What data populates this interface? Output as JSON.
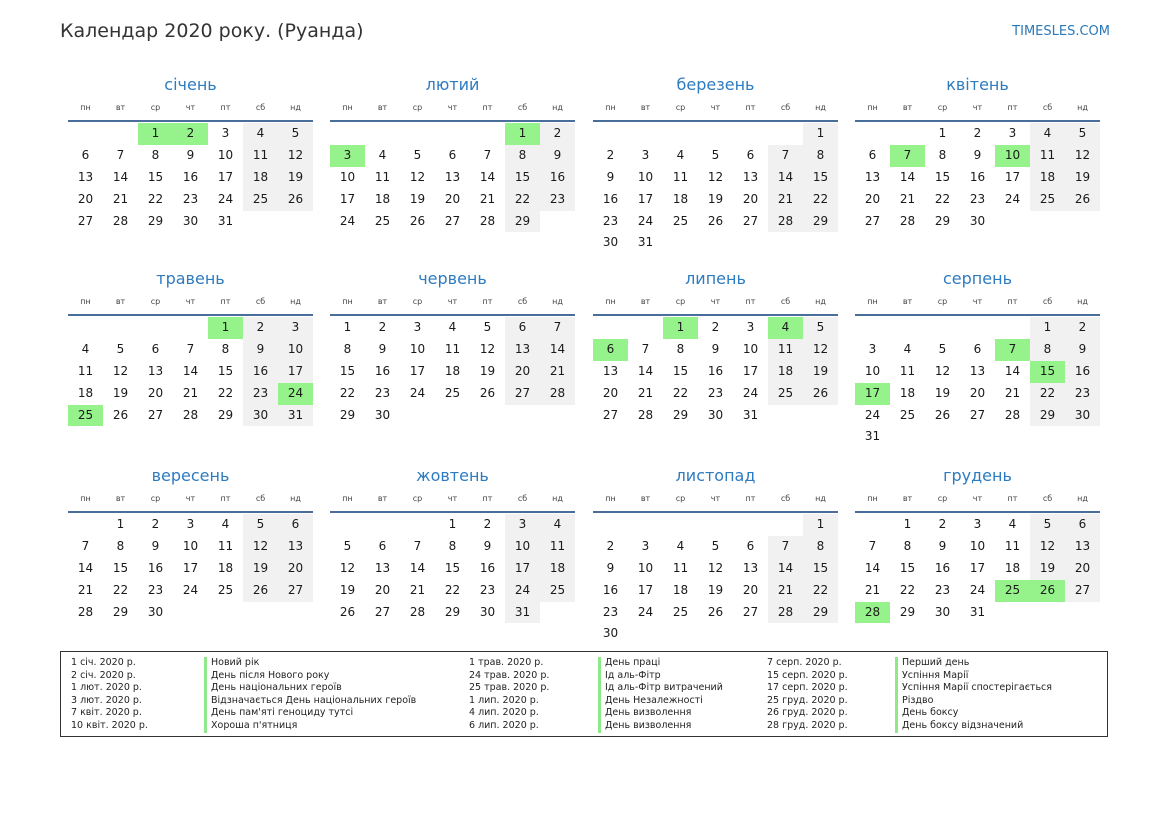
{
  "header": {
    "title": "Календар 2020 року. (Руанда)",
    "site": "TIMESLES.COM"
  },
  "weekdays": [
    "пн",
    "вт",
    "ср",
    "чт",
    "пт",
    "сб",
    "нд"
  ],
  "months": [
    {
      "name": "січень",
      "start": 2,
      "days": 31,
      "holidays": [
        1,
        2
      ]
    },
    {
      "name": "лютий",
      "start": 5,
      "days": 29,
      "holidays": [
        1,
        3
      ]
    },
    {
      "name": "березень",
      "start": 6,
      "days": 31,
      "holidays": []
    },
    {
      "name": "квітень",
      "start": 2,
      "days": 30,
      "holidays": [
        7,
        10
      ]
    },
    {
      "name": "травень",
      "start": 4,
      "days": 31,
      "holidays": [
        1,
        24,
        25
      ]
    },
    {
      "name": "червень",
      "start": 0,
      "days": 30,
      "holidays": []
    },
    {
      "name": "липень",
      "start": 2,
      "days": 31,
      "holidays": [
        1,
        4,
        6
      ]
    },
    {
      "name": "серпень",
      "start": 5,
      "days": 31,
      "holidays": [
        7,
        15,
        17
      ]
    },
    {
      "name": "вересень",
      "start": 1,
      "days": 30,
      "holidays": []
    },
    {
      "name": "жовтень",
      "start": 3,
      "days": 31,
      "holidays": []
    },
    {
      "name": "листопад",
      "start": 6,
      "days": 30,
      "holidays": []
    },
    {
      "name": "грудень",
      "start": 1,
      "days": 31,
      "holidays": [
        25,
        26,
        28
      ]
    }
  ],
  "holidays_list": [
    [
      {
        "date": "1 січ. 2020 р.",
        "name": "Новий рік"
      },
      {
        "date": "2 січ. 2020 р.",
        "name": "День після Нового року"
      },
      {
        "date": "1 лют. 2020 р.",
        "name": "День національних героїв"
      },
      {
        "date": "3 лют. 2020 р.",
        "name": "Відзначається День національних героїв"
      },
      {
        "date": "7 квіт. 2020 р.",
        "name": "День пам'яті геноциду тутсі"
      },
      {
        "date": "10 квіт. 2020 р.",
        "name": "Хороша п'ятниця"
      }
    ],
    [
      {
        "date": "1 трав. 2020 р.",
        "name": "День праці"
      },
      {
        "date": "24 трав. 2020 р.",
        "name": "Ід аль-Фітр"
      },
      {
        "date": "25 трав. 2020 р.",
        "name": "Ід аль-Фітр витрачений"
      },
      {
        "date": "1 лип. 2020 р.",
        "name": "День Незалежності"
      },
      {
        "date": "4 лип. 2020 р.",
        "name": "День визволення"
      },
      {
        "date": "6 лип. 2020 р.",
        "name": "День визволення"
      }
    ],
    [
      {
        "date": "7 серп. 2020 р.",
        "name": "Перший день"
      },
      {
        "date": "15 серп. 2020 р.",
        "name": "Успіння Марії"
      },
      {
        "date": "17 серп. 2020 р.",
        "name": "Успіння Марії спостерігається"
      },
      {
        "date": "25 груд. 2020 р.",
        "name": "Різдво"
      },
      {
        "date": "26 груд. 2020 р.",
        "name": "День боксу"
      },
      {
        "date": "28 груд. 2020 р.",
        "name": "День боксу відзначений"
      }
    ]
  ]
}
